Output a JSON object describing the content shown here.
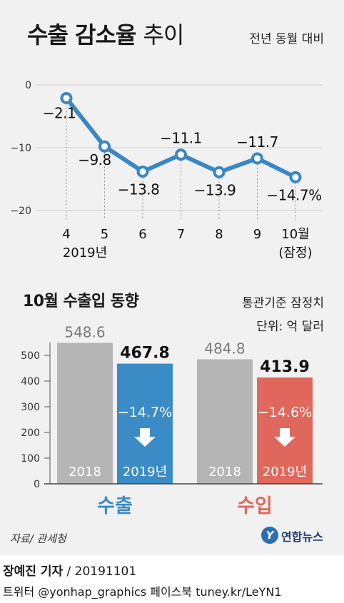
{
  "title": {
    "bold": "수출 감소율",
    "light": "추이"
  },
  "subtitle": "전년 동월 대비",
  "line_chart_year_label": "2019년",
  "bar_section": {
    "title": "10월 수출입 동향",
    "note": "통관기준 잠정치",
    "unit": "단위: 억 달러"
  },
  "source": "자료/ 관세청",
  "logo": {
    "mark": "Y",
    "text": "연합뉴스"
  },
  "footer": {
    "author": "장예진 기자",
    "date": " / 20191101",
    "social": "트위터 @yonhap_graphics  페이스북 tuney.kr/LeYN1"
  },
  "colors": {
    "line": "#3a87c4",
    "export_2019": "#3b8bc6",
    "import_2019": "#e0675c",
    "bar_2018": "#b5b5b5"
  },
  "chart_data": [
    {
      "type": "line",
      "x": [
        "4",
        "5",
        "6",
        "7",
        "8",
        "9",
        "10월"
      ],
      "x_sublabels": [
        "2019년",
        "",
        "",
        "",
        "",
        "",
        "(잠정)"
      ],
      "values": [
        -2.1,
        -9.8,
        -13.8,
        -11.1,
        -13.9,
        -11.7,
        -14.7
      ],
      "value_labels": [
        "−2.1",
        "−9.8",
        "−13.8",
        "−11.1",
        "−13.9",
        "−11.7",
        "−14.7%"
      ],
      "ylim": [
        -20,
        0
      ],
      "yticks": [
        0,
        -10,
        -20
      ],
      "ytick_labels": [
        "0",
        "−10",
        "−20"
      ],
      "grid": true
    },
    {
      "type": "bar",
      "groups": [
        "수출",
        "수입"
      ],
      "categories": [
        "2018",
        "2019년"
      ],
      "series": [
        {
          "group": "수출",
          "values": [
            548.6,
            467.8
          ],
          "labels": [
            "548.6",
            "467.8"
          ],
          "change": "−14.7%"
        },
        {
          "group": "수입",
          "values": [
            484.8,
            413.9
          ],
          "labels": [
            "484.8",
            "413.9"
          ],
          "change": "−14.6%"
        }
      ],
      "ylim": [
        0,
        550
      ],
      "yticks": [
        0,
        100,
        200,
        300,
        400,
        500
      ],
      "ytick_labels": [
        "0",
        "100",
        "200",
        "300",
        "400",
        "500"
      ]
    }
  ]
}
